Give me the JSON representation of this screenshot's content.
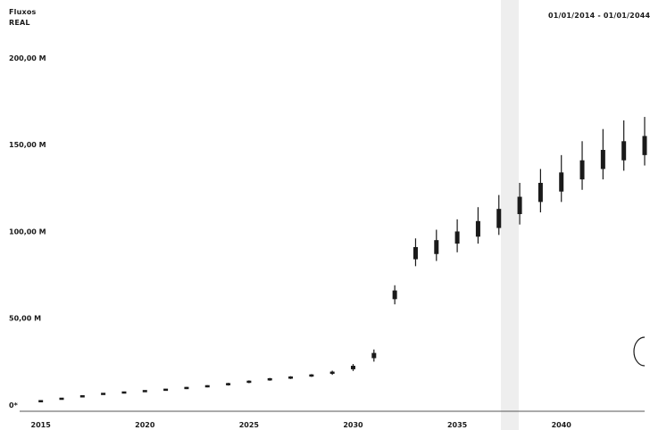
{
  "header": {
    "title": "Fluxos",
    "subtitle": "REAL",
    "date_range": "01/01/2014 - 01/01/2044"
  },
  "colors": {
    "marks": "#1a1a1a",
    "axis": "#555555",
    "band": "#eeeeee"
  },
  "chart_data": {
    "type": "line",
    "title": "Fluxos",
    "subtitle": "REAL",
    "xlabel": "",
    "ylabel": "",
    "xlim": [
      2014.5,
      2044
    ],
    "ylim": [
      0,
      220
    ],
    "y_ticks": [
      {
        "value": 0,
        "label": "0*"
      },
      {
        "value": 50,
        "label": "50,00 M"
      },
      {
        "value": 100,
        "label": "100,00 M"
      },
      {
        "value": 150,
        "label": "150,00 M"
      },
      {
        "value": 200,
        "label": "200,00 M"
      }
    ],
    "x_ticks": [
      {
        "value": 2015,
        "label": "2015"
      },
      {
        "value": 2020,
        "label": "2020"
      },
      {
        "value": 2025,
        "label": "2025"
      },
      {
        "value": 2030,
        "label": "2030"
      },
      {
        "value": 2035,
        "label": "2035"
      },
      {
        "value": 2040,
        "label": "2040"
      }
    ],
    "grid": false,
    "series": [
      {
        "points": [
          {
            "x": 2015,
            "low": 1.8,
            "q1": 2.0,
            "median": 2.2,
            "q3": 2.4,
            "high": 2.6
          },
          {
            "x": 2016,
            "low": 3.2,
            "q1": 3.4,
            "median": 3.6,
            "q3": 3.8,
            "high": 4.0
          },
          {
            "x": 2017,
            "low": 4.6,
            "q1": 4.8,
            "median": 5.0,
            "q3": 5.2,
            "high": 5.4
          },
          {
            "x": 2018,
            "low": 6.0,
            "q1": 6.2,
            "median": 6.4,
            "q3": 6.6,
            "high": 6.8
          },
          {
            "x": 2019,
            "low": 6.8,
            "q1": 7.0,
            "median": 7.2,
            "q3": 7.4,
            "high": 7.6
          },
          {
            "x": 2020,
            "low": 7.6,
            "q1": 7.8,
            "median": 8.0,
            "q3": 8.2,
            "high": 8.4
          },
          {
            "x": 2021,
            "low": 8.4,
            "q1": 8.6,
            "median": 8.8,
            "q3": 9.0,
            "high": 9.2
          },
          {
            "x": 2022,
            "low": 9.2,
            "q1": 9.5,
            "median": 9.8,
            "q3": 10.1,
            "high": 10.4
          },
          {
            "x": 2023,
            "low": 10.2,
            "q1": 10.5,
            "median": 10.8,
            "q3": 11.1,
            "high": 11.4
          },
          {
            "x": 2024,
            "low": 11.2,
            "q1": 11.6,
            "median": 12.0,
            "q3": 12.4,
            "high": 12.8
          },
          {
            "x": 2025,
            "low": 12.6,
            "q1": 13.0,
            "median": 13.4,
            "q3": 13.8,
            "high": 14.2
          },
          {
            "x": 2026,
            "low": 14.0,
            "q1": 14.4,
            "median": 14.8,
            "q3": 15.2,
            "high": 15.6
          },
          {
            "x": 2027,
            "low": 15.0,
            "q1": 15.4,
            "median": 15.8,
            "q3": 16.2,
            "high": 16.6
          },
          {
            "x": 2028,
            "low": 16.2,
            "q1": 16.6,
            "median": 17.0,
            "q3": 17.4,
            "high": 17.8
          },
          {
            "x": 2029,
            "low": 17.4,
            "q1": 18.0,
            "median": 18.6,
            "q3": 19.2,
            "high": 19.8
          },
          {
            "x": 2030,
            "low": 19.6,
            "q1": 20.6,
            "median": 21.6,
            "q3": 22.6,
            "high": 23.6
          },
          {
            "x": 2031,
            "low": 25.0,
            "q1": 27.0,
            "median": 28.5,
            "q3": 30.0,
            "high": 32.0
          },
          {
            "x": 2032,
            "low": 58.0,
            "q1": 61.0,
            "median": 63.5,
            "q3": 66.0,
            "high": 69.0
          },
          {
            "x": 2033,
            "low": 80.0,
            "q1": 84.0,
            "median": 87.5,
            "q3": 91.0,
            "high": 96.0
          },
          {
            "x": 2034,
            "low": 83.0,
            "q1": 87.0,
            "median": 91.0,
            "q3": 95.0,
            "high": 101.0
          },
          {
            "x": 2035,
            "low": 88.0,
            "q1": 93.0,
            "median": 96.5,
            "q3": 100.0,
            "high": 107.0
          },
          {
            "x": 2036,
            "low": 93.0,
            "q1": 97.0,
            "median": 101.5,
            "q3": 106.0,
            "high": 114.0
          },
          {
            "x": 2037,
            "low": 98.0,
            "q1": 102.0,
            "median": 107.5,
            "q3": 113.0,
            "high": 121.0
          },
          {
            "x": 2038,
            "low": 104.0,
            "q1": 110.0,
            "median": 115.0,
            "q3": 120.0,
            "high": 128.0
          },
          {
            "x": 2039,
            "low": 111.0,
            "q1": 117.0,
            "median": 122.5,
            "q3": 128.0,
            "high": 136.0
          },
          {
            "x": 2040,
            "low": 117.0,
            "q1": 123.0,
            "median": 128.5,
            "q3": 134.0,
            "high": 144.0
          },
          {
            "x": 2041,
            "low": 124.0,
            "q1": 130.0,
            "median": 135.5,
            "q3": 141.0,
            "high": 152.0
          },
          {
            "x": 2042,
            "low": 130.0,
            "q1": 136.0,
            "median": 141.5,
            "q3": 147.0,
            "high": 159.0
          },
          {
            "x": 2043,
            "low": 135.0,
            "q1": 141.0,
            "median": 146.5,
            "q3": 152.0,
            "high": 164.0
          },
          {
            "x": 2044,
            "low": 138.0,
            "q1": 144.0,
            "median": 149.5,
            "q3": 155.0,
            "high": 166.0
          }
        ]
      }
    ]
  }
}
